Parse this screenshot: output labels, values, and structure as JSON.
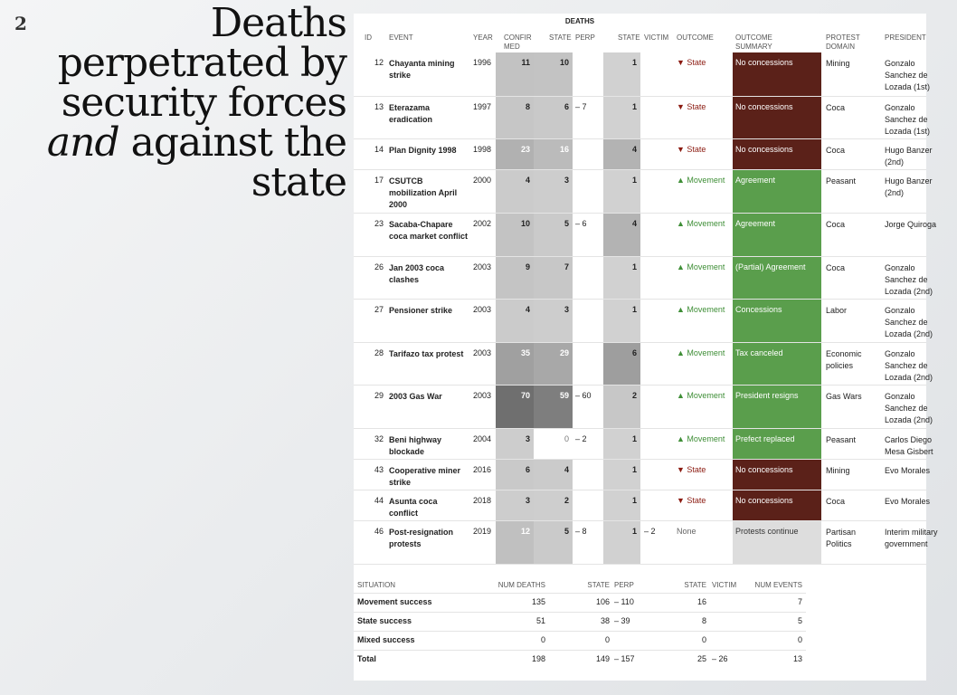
{
  "slide_number": "2",
  "title": {
    "lines": [
      "Deaths",
      "perpetrated by",
      "security forces",
      "against the",
      "state"
    ],
    "emphasis": "and"
  },
  "table": {
    "caption": "DEATHS",
    "headers": [
      "ID",
      "EVENT",
      "YEAR",
      "CONFIR MED",
      "STATE",
      "PERP",
      "STATE",
      "VICTIM",
      "OUTCOME",
      "OUTCOME SUMMARY",
      "PROTEST DOMAIN",
      "PRESIDENT"
    ],
    "rows": [
      {
        "id": "12",
        "event": "Chayanta mining strike",
        "year": "1996",
        "confirmed": 11,
        "state_perp": 10,
        "perp": "",
        "state_victim": 1,
        "victim": "",
        "outcome": "▼ State",
        "outcome_color": "#8b1a10",
        "summary": "No concessions",
        "summary_color": "#5b2119",
        "domain": "Mining",
        "president": "Gonzalo Sanchez de Lozada (1st)"
      },
      {
        "id": "13",
        "event": "Eterazama eradication",
        "year": "1997",
        "confirmed": 8,
        "state_perp": 6,
        "perp": "– 7",
        "state_victim": 1,
        "victim": "",
        "outcome": "▼ State",
        "outcome_color": "#8b1a10",
        "summary": "No concessions",
        "summary_color": "#5b2119",
        "domain": "Coca",
        "president": "Gonzalo Sanchez de Lozada (1st)"
      },
      {
        "id": "14",
        "event": "Plan Dignity 1998",
        "year": "1998",
        "confirmed": 23,
        "state_perp": 16,
        "perp": "",
        "state_victim": 4,
        "victim": "",
        "outcome": "▼ State",
        "outcome_color": "#8b1a10",
        "summary": "No concessions",
        "summary_color": "#5b2119",
        "domain": "Coca",
        "president": "Hugo Banzer (2nd)"
      },
      {
        "id": "17",
        "event": "CSUTCB mobilization April 2000",
        "year": "2000",
        "confirmed": 4,
        "state_perp": 3,
        "perp": "",
        "state_victim": 1,
        "victim": "",
        "outcome": "▲ Movement",
        "outcome_color": "#3e8e36",
        "summary": "Agreement",
        "summary_color": "#5a9e4c",
        "domain": "Peasant",
        "president": "Hugo Banzer (2nd)"
      },
      {
        "id": "23",
        "event": "Sacaba-Chapare coca market conflict",
        "year": "2002",
        "confirmed": 10,
        "state_perp": 5,
        "perp": "– 6",
        "state_victim": 4,
        "victim": "",
        "outcome": "▲ Movement",
        "outcome_color": "#3e8e36",
        "summary": "Agreement",
        "summary_color": "#5a9e4c",
        "domain": "Coca",
        "president": "Jorge Quiroga"
      },
      {
        "id": "26",
        "event": "Jan 2003 coca clashes",
        "year": "2003",
        "confirmed": 9,
        "state_perp": 7,
        "perp": "",
        "state_victim": 1,
        "victim": "",
        "outcome": "▲ Movement",
        "outcome_color": "#3e8e36",
        "summary": "(Partial) Agreement",
        "summary_color": "#5a9e4c",
        "domain": "Coca",
        "president": "Gonzalo Sanchez de Lozada (2nd)"
      },
      {
        "id": "27",
        "event": "Pensioner strike",
        "year": "2003",
        "confirmed": 4,
        "state_perp": 3,
        "perp": "",
        "state_victim": 1,
        "victim": "",
        "outcome": "▲ Movement",
        "outcome_color": "#3e8e36",
        "summary": "Concessions",
        "summary_color": "#5a9e4c",
        "domain": "Labor",
        "president": "Gonzalo Sanchez de Lozada (2nd)"
      },
      {
        "id": "28",
        "event": "Tarifazo tax protest",
        "year": "2003",
        "confirmed": 35,
        "state_perp": 29,
        "perp": "",
        "state_victim": 6,
        "victim": "",
        "outcome": "▲ Movement",
        "outcome_color": "#3e8e36",
        "summary": "Tax canceled",
        "summary_color": "#5a9e4c",
        "domain": "Economic policies",
        "president": "Gonzalo Sanchez de Lozada (2nd)"
      },
      {
        "id": "29",
        "event": "2003 Gas War",
        "year": "2003",
        "confirmed": 70,
        "state_perp": 59,
        "perp": "– 60",
        "state_victim": 2,
        "victim": "",
        "outcome": "▲ Movement",
        "outcome_color": "#3e8e36",
        "summary": "President resigns",
        "summary_color": "#5a9e4c",
        "domain": "Gas Wars",
        "president": "Gonzalo Sanchez de Lozada (2nd)"
      },
      {
        "id": "32",
        "event": "Beni highway blockade",
        "year": "2004",
        "confirmed": 3,
        "state_perp": 0,
        "perp": "– 2",
        "state_victim": 1,
        "victim": "",
        "outcome": "▲ Movement",
        "outcome_color": "#3e8e36",
        "summary": "Prefect replaced",
        "summary_color": "#5a9e4c",
        "domain": "Peasant",
        "president": "Carlos Diego Mesa Gisbert"
      },
      {
        "id": "43",
        "event": "Cooperative miner strike",
        "year": "2016",
        "confirmed": 6,
        "state_perp": 4,
        "perp": "",
        "state_victim": 1,
        "victim": "",
        "outcome": "▼ State",
        "outcome_color": "#8b1a10",
        "summary": "No concessions",
        "summary_color": "#5b2119",
        "domain": "Mining",
        "president": "Evo Morales"
      },
      {
        "id": "44",
        "event": "Asunta coca conflict",
        "year": "2018",
        "confirmed": 3,
        "state_perp": 2,
        "perp": "",
        "state_victim": 1,
        "victim": "",
        "outcome": "▼ State",
        "outcome_color": "#8b1a10",
        "summary": "No concessions",
        "summary_color": "#5b2119",
        "domain": "Coca",
        "president": "Evo Morales"
      },
      {
        "id": "46",
        "event": "Post-resignation protests",
        "year": "2019",
        "confirmed": 12,
        "state_perp": 5,
        "perp": "– 8",
        "state_victim": 1,
        "victim": "– 2",
        "outcome": "None",
        "outcome_color": "#666666",
        "summary": "Protests continue",
        "summary_color": "#dddddd",
        "domain": "Partisan Politics",
        "president": "Interim military government"
      }
    ]
  },
  "summary": {
    "headers": [
      "SITUATION",
      "NUM DEATHS",
      "STATE",
      "PERP",
      "STATE",
      "VICTIM",
      "NUM EVENTS"
    ],
    "rows": [
      [
        "Movement success",
        135,
        106,
        "– 110",
        16,
        "",
        7
      ],
      [
        "State success",
        51,
        38,
        "– 39",
        8,
        "",
        5
      ],
      [
        "Mixed success",
        0,
        0,
        "",
        0,
        "",
        0
      ],
      [
        "Total",
        198,
        149,
        "– 157",
        25,
        "– 26",
        13
      ]
    ]
  }
}
